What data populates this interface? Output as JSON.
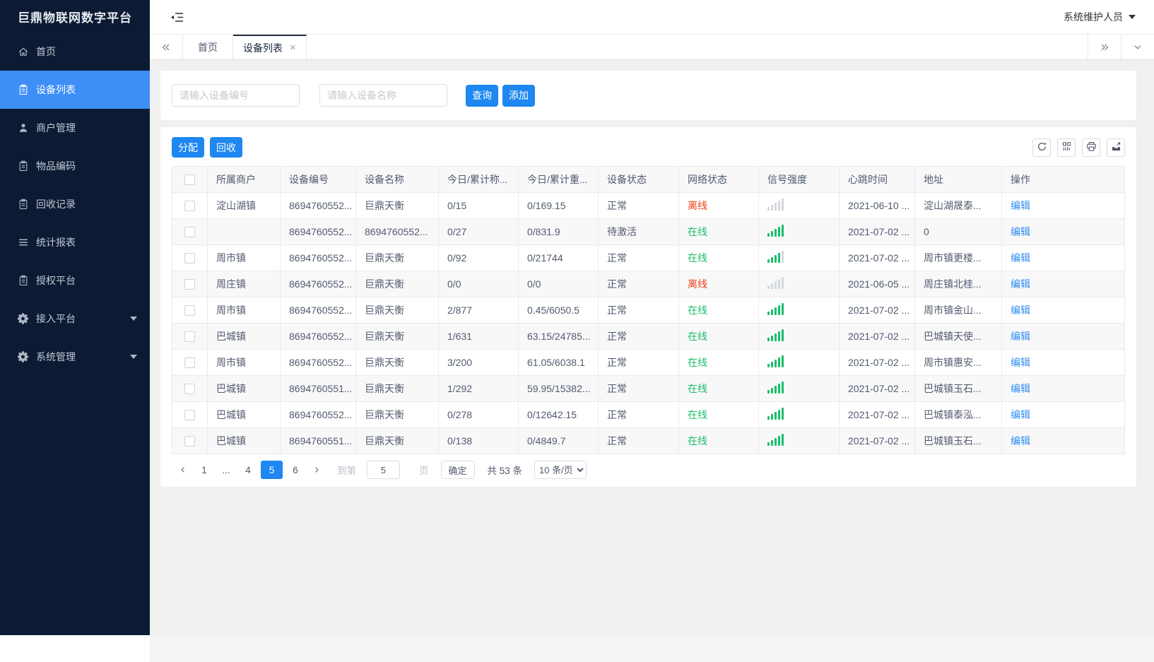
{
  "app": {
    "brand": "巨鼎物联网数字平台",
    "user": "系统维护人员"
  },
  "sidebar": {
    "items": [
      {
        "id": "home",
        "label": "首页",
        "icon": "home-icon",
        "active": false,
        "caret": false
      },
      {
        "id": "device-list",
        "label": "设备列表",
        "icon": "clipboard-icon",
        "active": true,
        "caret": false
      },
      {
        "id": "merchant-management",
        "label": "商户管理",
        "icon": "person-icon",
        "active": false,
        "caret": false
      },
      {
        "id": "item-codes",
        "label": "物品编码",
        "icon": "clipboard-icon",
        "active": false,
        "caret": false
      },
      {
        "id": "recycle-records",
        "label": "回收记录",
        "icon": "clipboard-icon",
        "active": false,
        "caret": false
      },
      {
        "id": "statistics-reports",
        "label": "统计报表",
        "icon": "list-icon",
        "active": false,
        "caret": false
      },
      {
        "id": "authorization-platform",
        "label": "授权平台",
        "icon": "clipboard-icon",
        "active": false,
        "caret": false
      },
      {
        "id": "access-platform",
        "label": "接入平台",
        "icon": "gear-icon",
        "active": false,
        "caret": true
      },
      {
        "id": "system-management",
        "label": "系统管理",
        "icon": "gear-icon",
        "active": false,
        "caret": true
      }
    ]
  },
  "tabs": {
    "close_glyph": "×",
    "items": [
      {
        "id": "home",
        "label": "首页",
        "active": false,
        "closable": false
      },
      {
        "id": "device-list",
        "label": "设备列表",
        "active": true,
        "closable": true
      }
    ]
  },
  "filters": {
    "device_no_placeholder": "请输入设备编号",
    "device_name_placeholder": "请输入设备名称",
    "search_label": "查询",
    "add_label": "添加"
  },
  "toolbar": {
    "assign_label": "分配",
    "recycle_label": "回收",
    "icons": [
      "refresh-icon",
      "columns-icon",
      "printer-icon",
      "export-icon"
    ]
  },
  "table": {
    "action_label": "编辑",
    "columns": [
      {
        "key": "merchant",
        "label": "所属商户"
      },
      {
        "key": "device_no",
        "label": "设备编号"
      },
      {
        "key": "device_name",
        "label": "设备名称"
      },
      {
        "key": "today_count",
        "label": "今日/累计称..."
      },
      {
        "key": "today_weight",
        "label": "今日/累计重..."
      },
      {
        "key": "device_status",
        "label": "设备状态"
      },
      {
        "key": "network_status",
        "label": "网络状态"
      },
      {
        "key": "signal",
        "label": "信号强度"
      },
      {
        "key": "heartbeat",
        "label": "心跳时间"
      },
      {
        "key": "address",
        "label": "地址"
      },
      {
        "key": "action",
        "label": "操作"
      }
    ],
    "rows": [
      {
        "merchant": "淀山湖镇",
        "device_no": "8694760552...",
        "device_name": "巨鼎天衡",
        "today_count": "0/15",
        "today_weight": "0/169.15",
        "device_status": "正常",
        "network_status": "离线",
        "network_state": "offline",
        "signal_level": 0,
        "heartbeat": "2021-06-10 ...",
        "address": "淀山湖晟泰..."
      },
      {
        "merchant": "",
        "device_no": "8694760552...",
        "device_name": "8694760552...",
        "today_count": "0/27",
        "today_weight": "0/831.9",
        "device_status": "待激活",
        "network_status": "在线",
        "network_state": "online",
        "signal_level": 5,
        "heartbeat": "2021-07-02 ...",
        "address": "0"
      },
      {
        "merchant": "周市镇",
        "device_no": "8694760552...",
        "device_name": "巨鼎天衡",
        "today_count": "0/92",
        "today_weight": "0/21744",
        "device_status": "正常",
        "network_status": "在线",
        "network_state": "online",
        "signal_level": 4,
        "heartbeat": "2021-07-02 ...",
        "address": "周市镇更楼..."
      },
      {
        "merchant": "周庄镇",
        "device_no": "8694760552...",
        "device_name": "巨鼎天衡",
        "today_count": "0/0",
        "today_weight": "0/0",
        "device_status": "正常",
        "network_status": "离线",
        "network_state": "offline",
        "signal_level": 0,
        "heartbeat": "2021-06-05 ...",
        "address": "周庄镇北桂..."
      },
      {
        "merchant": "周市镇",
        "device_no": "8694760552...",
        "device_name": "巨鼎天衡",
        "today_count": "2/877",
        "today_weight": "0.45/6050.5",
        "device_status": "正常",
        "network_status": "在线",
        "network_state": "online",
        "signal_level": 5,
        "heartbeat": "2021-07-02 ...",
        "address": "周市镇金山..."
      },
      {
        "merchant": "巴城镇",
        "device_no": "8694760552...",
        "device_name": "巨鼎天衡",
        "today_count": "1/631",
        "today_weight": "63.15/24785...",
        "device_status": "正常",
        "network_status": "在线",
        "network_state": "online",
        "signal_level": 5,
        "heartbeat": "2021-07-02 ...",
        "address": "巴城镇天使..."
      },
      {
        "merchant": "周市镇",
        "device_no": "8694760552...",
        "device_name": "巨鼎天衡",
        "today_count": "3/200",
        "today_weight": "61.05/6038.1",
        "device_status": "正常",
        "network_status": "在线",
        "network_state": "online",
        "signal_level": 5,
        "heartbeat": "2021-07-02 ...",
        "address": "周市镇惠安..."
      },
      {
        "merchant": "巴城镇",
        "device_no": "8694760551...",
        "device_name": "巨鼎天衡",
        "today_count": "1/292",
        "today_weight": "59.95/15382...",
        "device_status": "正常",
        "network_status": "在线",
        "network_state": "online",
        "signal_level": 5,
        "heartbeat": "2021-07-02 ...",
        "address": "巴城镇玉石..."
      },
      {
        "merchant": "巴城镇",
        "device_no": "8694760552...",
        "device_name": "巨鼎天衡",
        "today_count": "0/278",
        "today_weight": "0/12642.15",
        "device_status": "正常",
        "network_status": "在线",
        "network_state": "online",
        "signal_level": 5,
        "heartbeat": "2021-07-02 ...",
        "address": "巴城镇泰泓..."
      },
      {
        "merchant": "巴城镇",
        "device_no": "8694760551...",
        "device_name": "巨鼎天衡",
        "today_count": "0/138",
        "today_weight": "0/4849.7",
        "device_status": "正常",
        "network_status": "在线",
        "network_state": "online",
        "signal_level": 5,
        "heartbeat": "2021-07-02 ...",
        "address": "巴城镇玉石..."
      }
    ]
  },
  "pagination": {
    "pages": [
      "1",
      "...",
      "4",
      "5",
      "6"
    ],
    "active_page": "5",
    "jump_prefix": "到第",
    "jump_value": "5",
    "jump_suffix": "页",
    "confirm_label": "确定",
    "total_text": "共 53 条",
    "page_size_selected": "10 条/页",
    "page_size_options": [
      "10 条/页"
    ]
  },
  "colors": {
    "sidebar_bg": "#0c1b33",
    "sidebar_active_blue": "#3e8ef7",
    "button_blue": "#1e87f0",
    "link_blue": "#2d8cf0",
    "online_green": "#19be6b",
    "offline_red": "#ed4014"
  }
}
